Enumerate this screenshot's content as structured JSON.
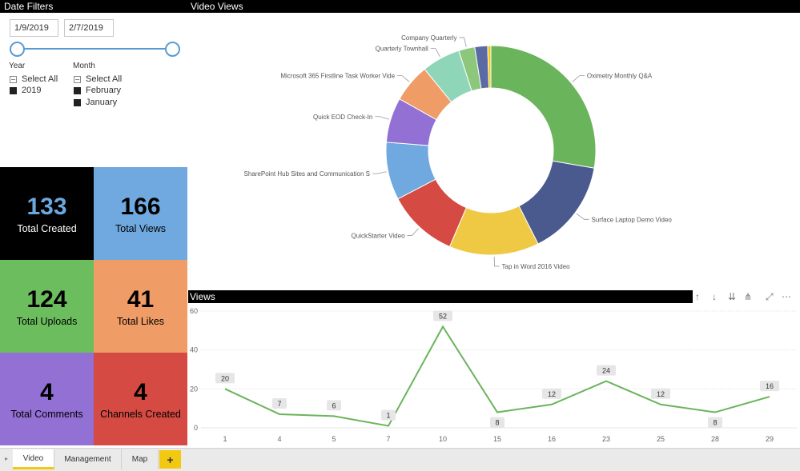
{
  "date_filters": {
    "title": "Date Filters",
    "start_date": "1/9/2019",
    "end_date": "2/7/2019",
    "year": {
      "title": "Year",
      "items": [
        {
          "label": "Select All",
          "state": "partial"
        },
        {
          "label": "2019",
          "state": "checked"
        }
      ]
    },
    "month": {
      "title": "Month",
      "items": [
        {
          "label": "Select All",
          "state": "partial"
        },
        {
          "label": "February",
          "state": "checked"
        },
        {
          "label": "January",
          "state": "checked"
        }
      ]
    }
  },
  "kpis": [
    {
      "value": "133",
      "label": "Total Created",
      "bg": "#000000",
      "value_color": "#6ca8e0",
      "label_color": "#ffffff"
    },
    {
      "value": "166",
      "label": "Total Views",
      "bg": "#6fa9df",
      "value_color": "#000000",
      "label_color": "#000000"
    },
    {
      "value": "124",
      "label": "Total Uploads",
      "bg": "#6cbd5e",
      "value_color": "#000000",
      "label_color": "#000000"
    },
    {
      "value": "41",
      "label": "Total Likes",
      "bg": "#ef9c66",
      "value_color": "#000000",
      "label_color": "#000000"
    },
    {
      "value": "4",
      "label": "Total Comments",
      "bg": "#9270d4",
      "value_color": "#000000",
      "label_color": "#000000"
    },
    {
      "value": "4",
      "label": "Channels Created",
      "bg": "#d54a42",
      "value_color": "#000000",
      "label_color": "#000000"
    }
  ],
  "video_views": {
    "title": "Video Views",
    "chart_data": {
      "type": "pie",
      "title": "Video Views",
      "slices": [
        {
          "label": "Oximetry Monthly Q&A",
          "value": 28,
          "color": "#6ab45c"
        },
        {
          "label": "Surface Laptop Demo Video",
          "value": 15,
          "color": "#4a5a8e"
        },
        {
          "label": "Tap in Word 2016 Video",
          "value": 14,
          "color": "#efc944"
        },
        {
          "label": "QuickStarter Video",
          "value": 11,
          "color": "#d54a42"
        },
        {
          "label": "SharePoint Hub Sites and Communication S",
          "value": 9,
          "color": "#6fa9df"
        },
        {
          "label": "Quick EOD Check-In",
          "value": 7,
          "color": "#9270d4"
        },
        {
          "label": "Microsoft 365 Firstline Task Worker Vide",
          "value": 6,
          "color": "#ef9c66"
        },
        {
          "label": "Quarterly Townhall",
          "value": 6,
          "color": "#8fd6b9"
        },
        {
          "label": "Company Quarterly",
          "value": 2.5,
          "color": "#8cc77c"
        },
        {
          "label": "",
          "value": 2,
          "color": "#5c6aa4"
        },
        {
          "label": "",
          "value": 0.5,
          "color": "#f2c811"
        }
      ]
    }
  },
  "views_chart": {
    "title": "Views",
    "chart_data": {
      "type": "line",
      "title": "Views",
      "categories": [
        "1",
        "4",
        "5",
        "7",
        "10",
        "15",
        "16",
        "23",
        "25",
        "28",
        "29"
      ],
      "values": [
        20,
        7,
        6,
        1,
        52,
        8,
        12,
        24,
        12,
        8,
        16
      ],
      "ylim": [
        0,
        60
      ],
      "yticks": [
        "0",
        "20",
        "40",
        "60"
      ],
      "color": "#6ab45c"
    }
  },
  "tabs": [
    {
      "label": "Video",
      "active": true
    },
    {
      "label": "Management",
      "active": false
    },
    {
      "label": "Map",
      "active": false
    }
  ],
  "add_tab_label": "+"
}
